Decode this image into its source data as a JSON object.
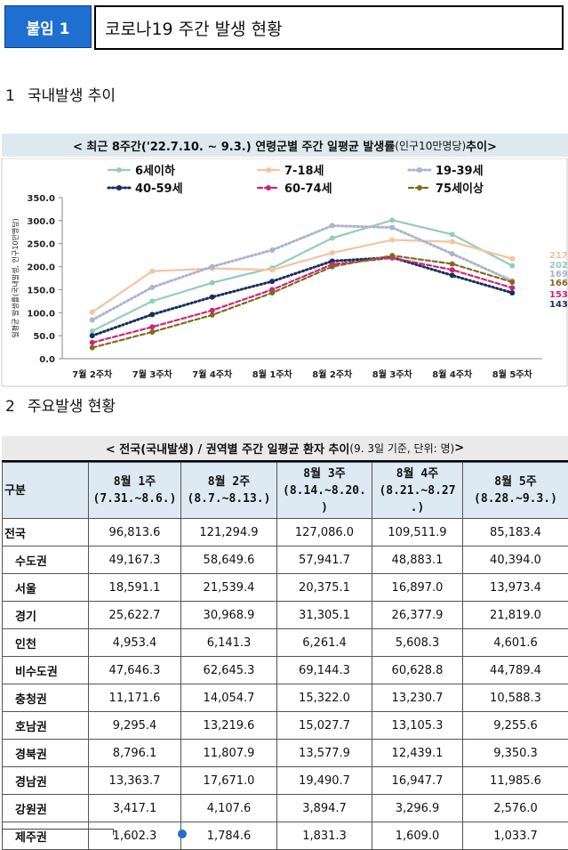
{
  "header": {
    "badge": "붙임 1",
    "title": "코로나19 주간 발생 현황"
  },
  "section1": {
    "num": "1",
    "title": "국내발생 추이"
  },
  "section2": {
    "num": "2",
    "title": "주요발생 현황"
  },
  "chart_title": {
    "main": "< 최근 8주간('22.7.10. ~ 9.3.) 연령군별 주간 일평균 발생률",
    "unit": "(인구10만명당)",
    "tail": " 추이>"
  },
  "chart_data": {
    "type": "line",
    "ylabel": "일평균 발생률(국내발생, 인구10만명당)",
    "ylim": [
      0,
      350
    ],
    "yticks": [
      "0.0",
      "50.0",
      "100.0",
      "150.0",
      "200.0",
      "250.0",
      "300.0",
      "350.0"
    ],
    "categories": [
      "7월 2주차",
      "7월 3주차",
      "7월 4주차",
      "8월 1주차",
      "8월 2주차",
      "8월 3주차",
      "8월 4주차",
      "8월 5주차"
    ],
    "series": [
      {
        "name": "6세이하",
        "color": "#94cdb9",
        "dash": "solid",
        "values": [
          60,
          125,
          165,
          197,
          262,
          301,
          270,
          202.0
        ],
        "end_label": "202.0"
      },
      {
        "name": "7-18세",
        "color": "#f4c39f",
        "dash": "solid",
        "values": [
          101,
          190,
          196,
          193,
          230,
          258,
          254,
          217.1
        ],
        "end_label": "217.1"
      },
      {
        "name": "19-39세",
        "color": "#a9b4cf",
        "dash": "dot",
        "values": [
          84,
          155,
          200,
          236,
          289,
          285,
          228,
          169.3
        ],
        "end_label": "169.3"
      },
      {
        "name": "40-59세",
        "color": "#1b2e5e",
        "dash": "dot",
        "values": [
          50,
          96,
          134,
          168,
          212,
          220,
          181,
          143.2
        ],
        "end_label": "143.2"
      },
      {
        "name": "60-74세",
        "color": "#d02378",
        "dash": "dash",
        "values": [
          35,
          69,
          105,
          150,
          205,
          219,
          193,
          153.9
        ],
        "end_label": "153.9"
      },
      {
        "name": "75세이상",
        "color": "#806a1d",
        "dash": "dash",
        "values": [
          24,
          58,
          95,
          143,
          200,
          224,
          206,
          166.4
        ],
        "end_label": "166.4"
      }
    ]
  },
  "table_title": {
    "main": "< 전국(국내발생) / 권역별 주간 일평균 환자 추이",
    "note": " (9. 3일 기준, 단위: 명)",
    "tail": " >"
  },
  "table": {
    "headers": [
      "구분",
      "8월 1주\n(7.31.~8.6.)",
      "8월 2주\n(8.7.~8.13.)",
      "8월 3주\n(8.14.~8.20.\n)",
      "8월 4주\n(8.21.~8.27\n.)",
      "8월 5주\n(8.28.~9.3.)"
    ],
    "rows": [
      {
        "name": "전국",
        "level": "top",
        "values": [
          "96,813.6",
          "121,294.9",
          "127,086.0",
          "109,511.9",
          "85,183.4"
        ]
      },
      {
        "name": "수도권",
        "level": "sub",
        "values": [
          "49,167.3",
          "58,649.6",
          "57,941.7",
          "48,883.1",
          "40,394.0"
        ]
      },
      {
        "name": "서울",
        "level": "subsub",
        "values": [
          "18,591.1",
          "21,539.4",
          "20,375.1",
          "16,897.0",
          "13,973.4"
        ]
      },
      {
        "name": "경기",
        "level": "subsub",
        "values": [
          "25,622.7",
          "30,968.9",
          "31,305.1",
          "26,377.9",
          "21,819.0"
        ]
      },
      {
        "name": "인천",
        "level": "subsub",
        "values": [
          "4,953.4",
          "6,141.3",
          "6,261.4",
          "5,608.3",
          "4,601.6"
        ]
      },
      {
        "name": "비수도권",
        "level": "sub",
        "values": [
          "47,646.3",
          "62,645.3",
          "69,144.3",
          "60,628.8",
          "44,789.4"
        ]
      },
      {
        "name": "충청권",
        "level": "subsub",
        "values": [
          "11,171.6",
          "14,054.7",
          "15,322.0",
          "13,230.7",
          "10,588.3"
        ]
      },
      {
        "name": "호남권",
        "level": "subsub",
        "values": [
          "9,295.4",
          "13,219.6",
          "15,027.7",
          "13,105.3",
          "9,255.6"
        ]
      },
      {
        "name": "경북권",
        "level": "subsub",
        "values": [
          "8,796.1",
          "11,807.9",
          "13,577.9",
          "12,439.1",
          "9,350.3"
        ]
      },
      {
        "name": "경남권",
        "level": "subsub",
        "values": [
          "13,363.7",
          "17,671.0",
          "19,490.7",
          "16,947.7",
          "11,985.6"
        ]
      },
      {
        "name": "강원권",
        "level": "subsub",
        "values": [
          "3,417.1",
          "4,107.6",
          "3,894.7",
          "3,296.9",
          "2,576.0"
        ]
      },
      {
        "name": "제주권",
        "level": "subsub",
        "values": [
          "1,602.3",
          "1,784.6",
          "1,831.3",
          "1,609.0",
          "1,033.7"
        ]
      }
    ]
  }
}
